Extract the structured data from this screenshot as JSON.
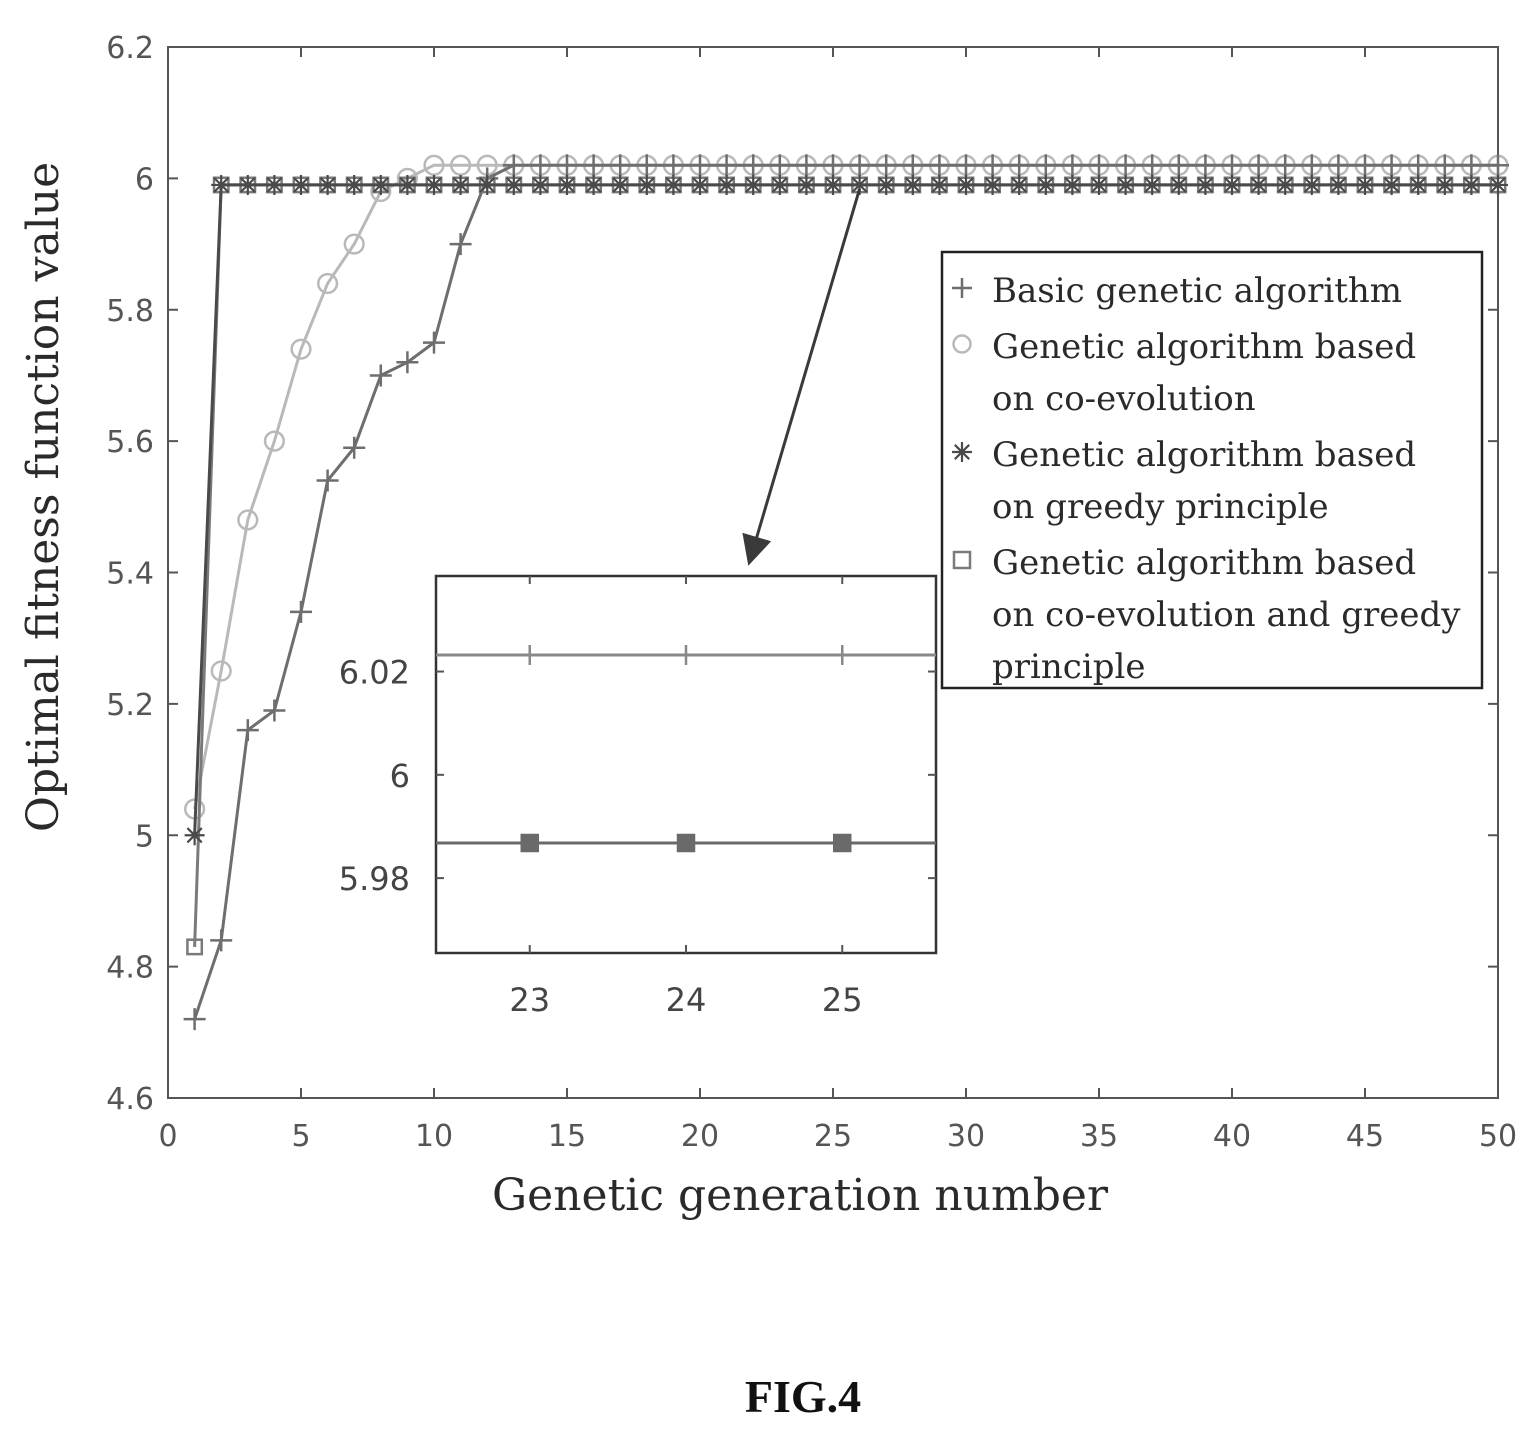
{
  "chart_data": {
    "type": "line",
    "title": "",
    "xlabel": "Genetic generation number",
    "ylabel": "Optimal fitness function value",
    "xlim": [
      0,
      50
    ],
    "ylim": [
      4.6,
      6.2
    ],
    "x_ticks": [
      "0",
      "5",
      "10",
      "15",
      "20",
      "25",
      "30",
      "35",
      "40",
      "45",
      "50"
    ],
    "y_ticks": [
      "4.6",
      "4.8",
      "5",
      "5.2",
      "5.4",
      "5.6",
      "5.8",
      "6",
      "6.2"
    ],
    "grid": false,
    "legend_position": "right",
    "series": [
      {
        "name": "Basic genetic algorithm",
        "marker": "plus",
        "color": "#6e6e6e",
        "x": [
          1,
          2,
          3,
          4,
          5,
          6,
          7,
          8,
          9,
          10,
          11,
          12,
          13,
          14,
          15,
          16,
          17,
          18,
          19,
          20,
          21,
          22,
          23,
          24,
          25,
          26,
          27,
          28,
          29,
          30,
          31,
          32,
          33,
          34,
          35,
          36,
          37,
          38,
          39,
          40,
          41,
          42,
          43,
          44,
          45,
          46,
          47,
          48,
          49,
          50
        ],
        "y": [
          4.72,
          4.84,
          5.16,
          5.19,
          5.34,
          5.54,
          5.59,
          5.7,
          5.72,
          5.75,
          5.9,
          6.0,
          6.02,
          6.02,
          6.02,
          6.02,
          6.02,
          6.02,
          6.02,
          6.02,
          6.02,
          6.02,
          6.02,
          6.02,
          6.02,
          6.02,
          6.02,
          6.02,
          6.02,
          6.02,
          6.02,
          6.02,
          6.02,
          6.02,
          6.02,
          6.02,
          6.02,
          6.02,
          6.02,
          6.02,
          6.02,
          6.02,
          6.02,
          6.02,
          6.02,
          6.02,
          6.02,
          6.02,
          6.02,
          6.02
        ]
      },
      {
        "name": "Genetic algorithm based on co-evolution",
        "marker": "circle",
        "color": "#b9b9b9",
        "x": [
          1,
          2,
          3,
          4,
          5,
          6,
          7,
          8,
          9,
          10,
          11,
          12,
          13,
          14,
          15,
          16,
          17,
          18,
          19,
          20,
          21,
          22,
          23,
          24,
          25,
          26,
          27,
          28,
          29,
          30,
          31,
          32,
          33,
          34,
          35,
          36,
          37,
          38,
          39,
          40,
          41,
          42,
          43,
          44,
          45,
          46,
          47,
          48,
          49,
          50
        ],
        "y": [
          5.04,
          5.25,
          5.48,
          5.6,
          5.74,
          5.84,
          5.9,
          5.98,
          6.0,
          6.02,
          6.02,
          6.02,
          6.02,
          6.02,
          6.02,
          6.02,
          6.02,
          6.02,
          6.02,
          6.02,
          6.02,
          6.02,
          6.02,
          6.02,
          6.02,
          6.02,
          6.02,
          6.02,
          6.02,
          6.02,
          6.02,
          6.02,
          6.02,
          6.02,
          6.02,
          6.02,
          6.02,
          6.02,
          6.02,
          6.02,
          6.02,
          6.02,
          6.02,
          6.02,
          6.02,
          6.02,
          6.02,
          6.02,
          6.02,
          6.02
        ]
      },
      {
        "name": "Genetic algorithm based on greedy principle",
        "marker": "star",
        "color": "#4a4a4a",
        "x": [
          1,
          2,
          3,
          4,
          5,
          6,
          7,
          8,
          9,
          10,
          11,
          12,
          13,
          14,
          15,
          16,
          17,
          18,
          19,
          20,
          21,
          22,
          23,
          24,
          25,
          26,
          27,
          28,
          29,
          30,
          31,
          32,
          33,
          34,
          35,
          36,
          37,
          38,
          39,
          40,
          41,
          42,
          43,
          44,
          45,
          46,
          47,
          48,
          49,
          50
        ],
        "y": [
          5.0,
          5.99,
          5.99,
          5.99,
          5.99,
          5.99,
          5.99,
          5.99,
          5.99,
          5.99,
          5.99,
          5.99,
          5.99,
          5.99,
          5.99,
          5.99,
          5.99,
          5.99,
          5.99,
          5.99,
          5.99,
          5.99,
          5.99,
          5.99,
          5.99,
          5.99,
          5.99,
          5.99,
          5.99,
          5.99,
          5.99,
          5.99,
          5.99,
          5.99,
          5.99,
          5.99,
          5.99,
          5.99,
          5.99,
          5.99,
          5.99,
          5.99,
          5.99,
          5.99,
          5.99,
          5.99,
          5.99,
          5.99,
          5.99,
          5.99
        ]
      },
      {
        "name": "Genetic algorithm based on co-evolution and greedy principle",
        "marker": "square",
        "color": "#7a7a7a",
        "x": [
          1,
          2,
          3,
          4,
          5,
          6,
          7,
          8,
          9,
          10,
          11,
          12,
          13,
          14,
          15,
          16,
          17,
          18,
          19,
          20,
          21,
          22,
          23,
          24,
          25,
          26,
          27,
          28,
          29,
          30,
          31,
          32,
          33,
          34,
          35,
          36,
          37,
          38,
          39,
          40,
          41,
          42,
          43,
          44,
          45,
          46,
          47,
          48,
          49,
          50
        ],
        "y": [
          4.83,
          5.99,
          5.99,
          5.99,
          5.99,
          5.99,
          5.99,
          5.99,
          5.99,
          5.99,
          5.99,
          5.99,
          5.99,
          5.99,
          5.99,
          5.99,
          5.99,
          5.99,
          5.99,
          5.99,
          5.99,
          5.99,
          5.99,
          5.99,
          5.99,
          5.99,
          5.99,
          5.99,
          5.99,
          5.99,
          5.99,
          5.99,
          5.99,
          5.99,
          5.99,
          5.99,
          5.99,
          5.99,
          5.99,
          5.99,
          5.99,
          5.99,
          5.99,
          5.99,
          5.99,
          5.99,
          5.99,
          5.99,
          5.99,
          5.99
        ]
      }
    ],
    "legend_entries": [
      {
        "marker": "plus",
        "lines": [
          "Basic genetic algorithm"
        ]
      },
      {
        "marker": "circle",
        "lines": [
          "Genetic algorithm based",
          "on co-evolution"
        ]
      },
      {
        "marker": "star",
        "lines": [
          "Genetic algorithm based",
          "on greedy principle"
        ]
      },
      {
        "marker": "square",
        "lines": [
          "Genetic algorithm based",
          "on co-evolution and greedy",
          "principle"
        ]
      }
    ],
    "inset": {
      "xlim": [
        22.4,
        25.6
      ],
      "ylim": [
        5.9655,
        6.0385
      ],
      "x_ticks": [
        "23",
        "24",
        "25"
      ],
      "y_ticks": [
        "5.98",
        "6",
        "6.02"
      ],
      "zoom_target": {
        "x": 26,
        "y": 5.99
      },
      "series": [
        {
          "marker": "plus",
          "color": "#888888",
          "x": [
            23,
            24,
            25
          ],
          "y": [
            6.0232,
            6.0232,
            6.0232
          ]
        },
        {
          "marker": "square",
          "color": "#6a6a6a",
          "x": [
            23,
            24,
            25
          ],
          "y": [
            5.9868,
            5.9868,
            5.9868
          ]
        }
      ]
    }
  },
  "caption": "FIG.4"
}
